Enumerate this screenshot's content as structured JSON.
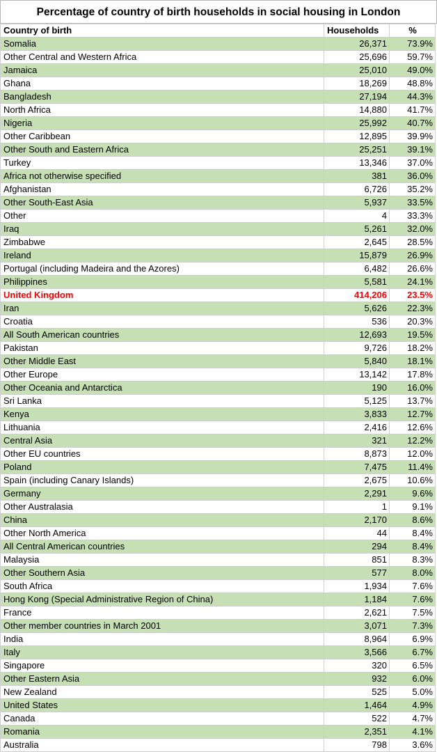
{
  "title": "Percentage of country of birth households in social housing in London",
  "columns": [
    "Country of birth",
    "Households",
    "%"
  ],
  "highlight_color": "#ff0000",
  "stripe_color": "#c7dfb4",
  "rows": [
    {
      "country": "Somalia",
      "households": "26,371",
      "pct": "73.9%"
    },
    {
      "country": "Other Central and Western Africa",
      "households": "25,696",
      "pct": "59.7%"
    },
    {
      "country": "Jamaica",
      "households": "25,010",
      "pct": "49.0%"
    },
    {
      "country": "Ghana",
      "households": "18,269",
      "pct": "48.8%"
    },
    {
      "country": "Bangladesh",
      "households": "27,194",
      "pct": "44.3%"
    },
    {
      "country": "North Africa",
      "households": "14,880",
      "pct": "41.7%"
    },
    {
      "country": "Nigeria",
      "households": "25,992",
      "pct": "40.7%"
    },
    {
      "country": "Other Caribbean",
      "households": "12,895",
      "pct": "39.9%"
    },
    {
      "country": "Other South and Eastern Africa",
      "households": "25,251",
      "pct": "39.1%"
    },
    {
      "country": "Turkey",
      "households": "13,346",
      "pct": "37.0%"
    },
    {
      "country": "Africa not otherwise specified",
      "households": "381",
      "pct": "36.0%"
    },
    {
      "country": "Afghanistan",
      "households": "6,726",
      "pct": "35.2%"
    },
    {
      "country": "Other South-East Asia",
      "households": "5,937",
      "pct": "33.5%"
    },
    {
      "country": "Other",
      "households": "4",
      "pct": "33.3%"
    },
    {
      "country": "Iraq",
      "households": "5,261",
      "pct": "32.0%"
    },
    {
      "country": "Zimbabwe",
      "households": "2,645",
      "pct": "28.5%"
    },
    {
      "country": "Ireland",
      "households": "15,879",
      "pct": "26.9%"
    },
    {
      "country": "Portugal (including Madeira and the Azores)",
      "households": "6,482",
      "pct": "26.6%"
    },
    {
      "country": "Philippines",
      "households": "5,581",
      "pct": "24.1%"
    },
    {
      "country": "United Kingdom",
      "households": "414,206",
      "pct": "23.5%",
      "highlight": true
    },
    {
      "country": "Iran",
      "households": "5,626",
      "pct": "22.3%"
    },
    {
      "country": "Croatia",
      "households": "536",
      "pct": "20.3%"
    },
    {
      "country": "All South American countries",
      "households": "12,693",
      "pct": "19.5%"
    },
    {
      "country": "Pakistan",
      "households": "9,726",
      "pct": "18.2%"
    },
    {
      "country": "Other Middle East",
      "households": "5,840",
      "pct": "18.1%"
    },
    {
      "country": "Other Europe",
      "households": "13,142",
      "pct": "17.8%"
    },
    {
      "country": "Other Oceania and Antarctica",
      "households": "190",
      "pct": "16.0%"
    },
    {
      "country": "Sri Lanka",
      "households": "5,125",
      "pct": "13.7%"
    },
    {
      "country": "Kenya",
      "households": "3,833",
      "pct": "12.7%"
    },
    {
      "country": "Lithuania",
      "households": "2,416",
      "pct": "12.6%"
    },
    {
      "country": "Central Asia",
      "households": "321",
      "pct": "12.2%"
    },
    {
      "country": "Other EU countries",
      "households": "8,873",
      "pct": "12.0%"
    },
    {
      "country": "Poland",
      "households": "7,475",
      "pct": "11.4%"
    },
    {
      "country": "Spain (including Canary Islands)",
      "households": "2,675",
      "pct": "10.6%"
    },
    {
      "country": "Germany",
      "households": "2,291",
      "pct": "9.6%"
    },
    {
      "country": "Other Australasia",
      "households": "1",
      "pct": "9.1%"
    },
    {
      "country": "China",
      "households": "2,170",
      "pct": "8.6%"
    },
    {
      "country": "Other North America",
      "households": "44",
      "pct": "8.4%"
    },
    {
      "country": "All Central American countries",
      "households": "294",
      "pct": "8.4%"
    },
    {
      "country": "Malaysia",
      "households": "851",
      "pct": "8.3%"
    },
    {
      "country": "Other Southern Asia",
      "households": "577",
      "pct": "8.0%"
    },
    {
      "country": "South Africa",
      "households": "1,934",
      "pct": "7.6%"
    },
    {
      "country": "Hong Kong (Special Administrative Region of China)",
      "households": "1,184",
      "pct": "7.6%"
    },
    {
      "country": "France",
      "households": "2,621",
      "pct": "7.5%"
    },
    {
      "country": "Other member countries in March 2001",
      "households": "3,071",
      "pct": "7.3%"
    },
    {
      "country": "India",
      "households": "8,964",
      "pct": "6.9%"
    },
    {
      "country": "Italy",
      "households": "3,566",
      "pct": "6.7%"
    },
    {
      "country": "Singapore",
      "households": "320",
      "pct": "6.5%"
    },
    {
      "country": "Other Eastern Asia",
      "households": "932",
      "pct": "6.0%"
    },
    {
      "country": "New Zealand",
      "households": "525",
      "pct": "5.0%"
    },
    {
      "country": "United States",
      "households": "1,464",
      "pct": "4.9%"
    },
    {
      "country": "Canada",
      "households": "522",
      "pct": "4.7%"
    },
    {
      "country": "Romania",
      "households": "2,351",
      "pct": "4.1%"
    },
    {
      "country": "Australia",
      "households": "798",
      "pct": "3.6%"
    }
  ]
}
